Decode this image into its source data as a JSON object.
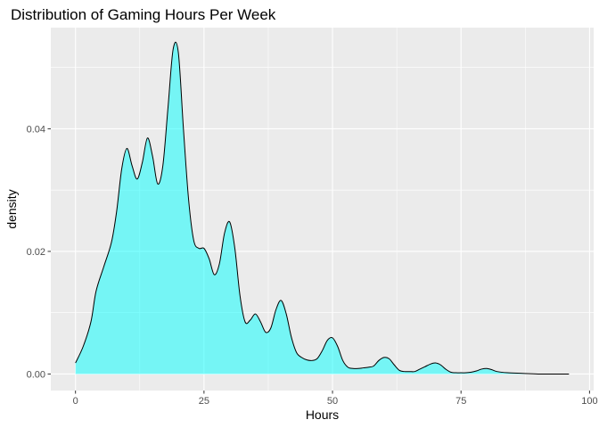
{
  "chart_data": {
    "type": "area",
    "title": "Distribution of Gaming Hours Per Week",
    "xlabel": "Hours",
    "ylabel": "density",
    "xlim": [
      -4.8,
      100.8
    ],
    "ylim": [
      -0.0027,
      0.0565
    ],
    "x_ticks": [
      0,
      25,
      50,
      75,
      100
    ],
    "x_tick_labels": [
      "0",
      "25",
      "50",
      "75",
      "100"
    ],
    "y_ticks": [
      0.0,
      0.02,
      0.04
    ],
    "y_tick_labels": [
      "0.00",
      "0.02",
      "0.04"
    ],
    "grid": true,
    "fill_color": "#00ffff",
    "fill_opacity": 0.5,
    "line_color": "#000000",
    "panel_background": "#ebebeb",
    "grid_color": "#ffffff",
    "series": [
      {
        "x": [
          0,
          1.5,
          3,
          4,
          5.5,
          7,
          8,
          9,
          10,
          11,
          12,
          13,
          14,
          15,
          16,
          17,
          18,
          19,
          20,
          21,
          22,
          23,
          24,
          25,
          26,
          27,
          28,
          29,
          30,
          31,
          32,
          33,
          34,
          35,
          36,
          37,
          38,
          39,
          40,
          41,
          42,
          43,
          44,
          45,
          46,
          47,
          48,
          49,
          50,
          51,
          52,
          53,
          54,
          55,
          56,
          57,
          58,
          59,
          60,
          61,
          62,
          63,
          64,
          65,
          66,
          67,
          68,
          69,
          70,
          71,
          72,
          73,
          74,
          75,
          76,
          77,
          78,
          79,
          80,
          81,
          82,
          84,
          87,
          90,
          93,
          96
        ],
        "y": [
          0.0018,
          0.0045,
          0.0085,
          0.0135,
          0.0175,
          0.0215,
          0.0265,
          0.0335,
          0.0368,
          0.034,
          0.0318,
          0.0345,
          0.0385,
          0.0355,
          0.031,
          0.034,
          0.0435,
          0.053,
          0.0525,
          0.04,
          0.0285,
          0.0218,
          0.0205,
          0.0205,
          0.0188,
          0.0162,
          0.018,
          0.023,
          0.0248,
          0.0205,
          0.0128,
          0.0085,
          0.0088,
          0.0098,
          0.0085,
          0.0068,
          0.0075,
          0.0105,
          0.012,
          0.0098,
          0.006,
          0.0035,
          0.0027,
          0.0023,
          0.0022,
          0.0025,
          0.0038,
          0.0055,
          0.0059,
          0.0045,
          0.0022,
          0.0011,
          0.0009,
          0.0009,
          0.001,
          0.0011,
          0.0013,
          0.0022,
          0.0027,
          0.0025,
          0.0015,
          0.0006,
          0.0004,
          0.0004,
          0.0004,
          0.0008,
          0.0012,
          0.0016,
          0.0018,
          0.0015,
          0.0008,
          0.0003,
          0.0002,
          0.0002,
          0.0002,
          0.0003,
          0.0005,
          0.0008,
          0.0009,
          0.0007,
          0.0004,
          0.0002,
          0.0001,
          0.0,
          0.0,
          0.0
        ]
      }
    ]
  }
}
